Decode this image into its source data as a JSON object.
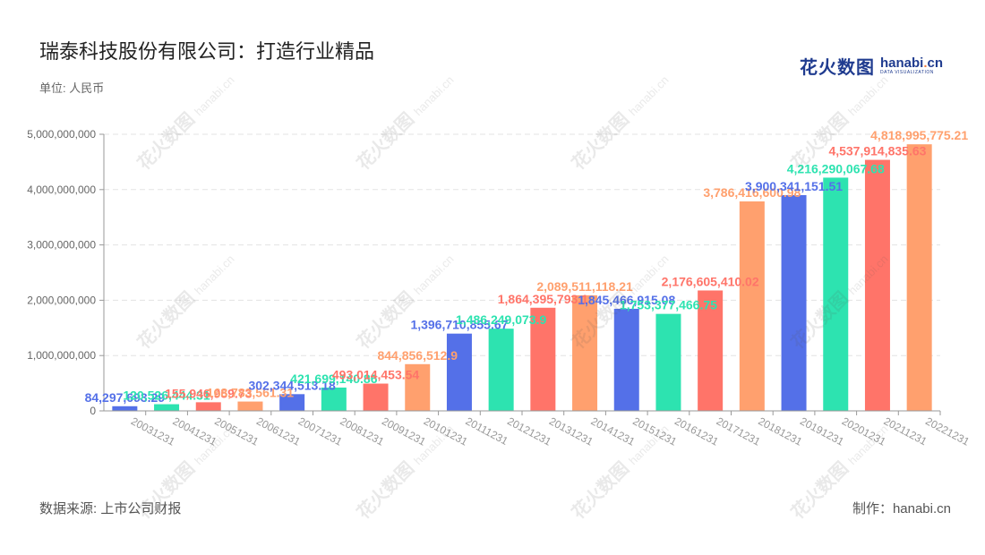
{
  "header": {
    "title": "瑞泰科技股份有限公司：打造行业精品",
    "unit": "单位: 人民币"
  },
  "footer": {
    "source": "数据来源: 上市公司财报",
    "maker": "制作：hanabi.cn"
  },
  "logo": {
    "cn": "花火数图",
    "en_main": "hanabi",
    "en_dot": ".",
    "en_tld": "cn",
    "en_sub": "DATA VISUALIZATION"
  },
  "watermark": {
    "cn": "花火数图",
    "en": "hanabi.cn"
  },
  "colors": {
    "blue": "#5470e8",
    "green": "#2de3b0",
    "red": "#ff7469",
    "orange": "#ffa06e",
    "axis": "#999999",
    "grid": "#e3e3e3"
  },
  "chart_data": {
    "type": "bar",
    "categories": [
      "20031231",
      "20041231",
      "20051231",
      "20061231",
      "20071231",
      "20081231",
      "20091231",
      "20101231",
      "20111231",
      "20121231",
      "20131231",
      "20141231",
      "20151231",
      "20161231",
      "20171231",
      "20181231",
      "20191231",
      "20201231",
      "20211231",
      "20221231"
    ],
    "values": [
      84297693.29,
      120526444.31,
      155946959.73,
      168783561.31,
      302344513.18,
      421699140.86,
      493014453.54,
      844856512.9,
      1396710855.67,
      1486249073.9,
      1864395793.1,
      2089511118.21,
      1845466915.08,
      1753377466.75,
      2176605410.02,
      3786416600.98,
      3900341151.51,
      4216290067.68,
      4537914835.63,
      4818995775.21
    ],
    "labels": [
      "84,297,693.29",
      "120,526,444.31",
      "155,946,959.73",
      "168,783,561.31",
      "302,344,513.18",
      "421,699,140.86",
      "493,014,453.54",
      "844,856,512.9",
      "1,396,710,855.67",
      "1,486,249,073.9",
      "1,864,395,793.1",
      "2,089,511,118.21",
      "1,845,466,915.08",
      "1,753,377,466.75",
      "2,176,605,410.02",
      "3,786,416,600.98",
      "3,900,341,151.51",
      "4,216,290,067.68",
      "4,537,914,835.63",
      "4,818,995,775.21"
    ],
    "bar_colors": [
      "blue",
      "green",
      "red",
      "orange",
      "blue",
      "green",
      "red",
      "orange",
      "blue",
      "green",
      "red",
      "orange",
      "blue",
      "green",
      "red",
      "orange",
      "blue",
      "green",
      "red",
      "orange"
    ],
    "yticks": [
      "0",
      "1,000,000,000",
      "2,000,000,000",
      "3,000,000,000",
      "4,000,000,000",
      "5,000,000,000"
    ],
    "ylim": [
      0,
      5000000000
    ],
    "grid": true,
    "legend": "none"
  }
}
